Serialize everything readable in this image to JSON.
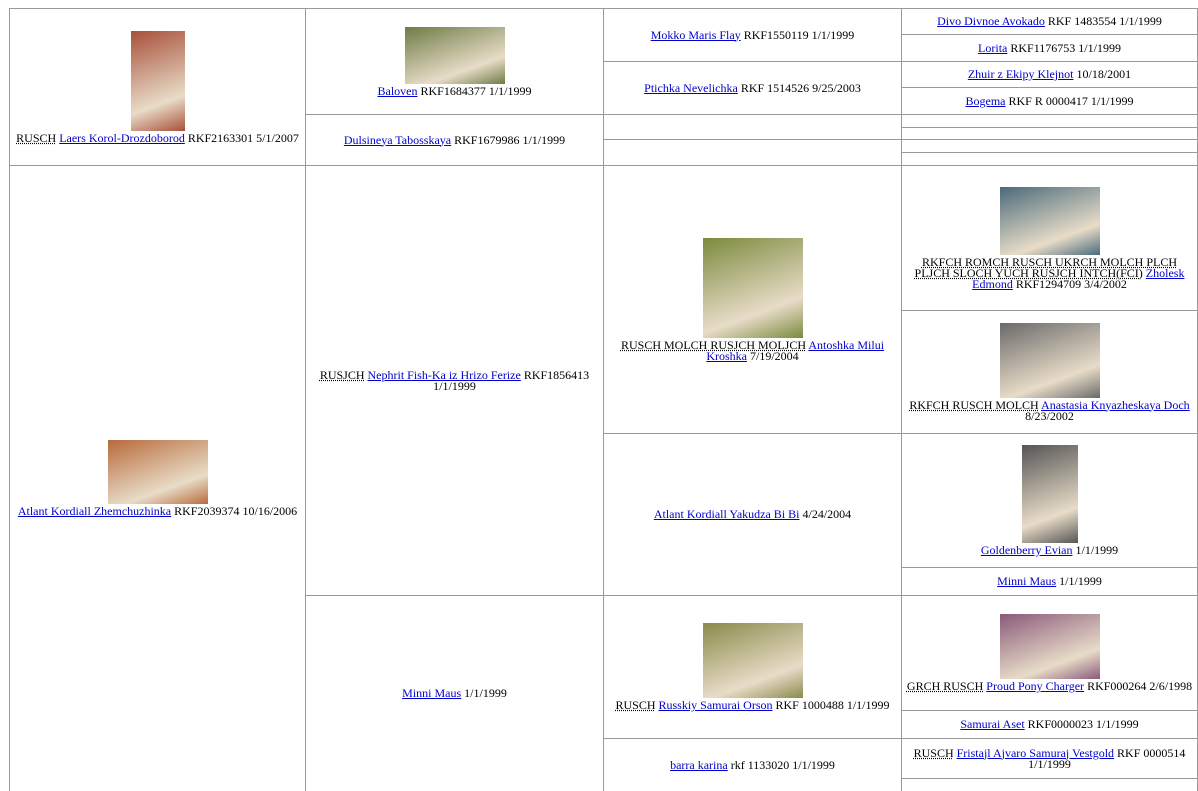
{
  "cells": [
    {
      "title": "RUSCH",
      "name": "Laers Korol-Drozdoborod",
      "info": "RKF2163301 5/1/2007"
    },
    {
      "name": "Baloven",
      "info": "RKF1684377 1/1/1999"
    },
    {
      "name": "Mokko Maris Flay",
      "info": "RKF1550119 1/1/1999"
    },
    {
      "name": "Divo Divnoe Avokado",
      "info": "RKF 1483554 1/1/1999"
    },
    {
      "name": "Lorita",
      "info": "RKF1176753 1/1/1999"
    },
    {
      "name": "Ptichka Nevelichka",
      "info": "RKF 1514526 9/25/2003"
    },
    {
      "name": "Zhuir z Ekipy Klejnot",
      "info": "10/18/2001"
    },
    {
      "name": "Bogema",
      "info": "RKF R 0000417 1/1/1999"
    },
    {
      "name": "Dulsineya Tabosskaya",
      "info": "RKF1679986 1/1/1999"
    },
    {
      "name": "Atlant Kordiall Zhemchuzhinka",
      "info": "RKF2039374 10/16/2006"
    },
    {
      "title": "RUSJCH",
      "name": "Nephrit Fish-Ka iz Hrizo Ferize",
      "info": "RKF1856413 1/1/1999"
    },
    {
      "title": "RUSCH MOLCH RUSJCH MOLJCH",
      "name": "Antoshka Milui Kroshka",
      "info": "7/19/2004"
    },
    {
      "title": "RKFCH ROMCH RUSCH UKRCH MOLCH PLCH PLJCH SLOCH YUCH RUSJCH INTCH(FCI)",
      "name": "Zholesk Edmond",
      "info": "RKF1294709 3/4/2002"
    },
    {
      "title": "RKFCH RUSCH MOLCH",
      "name": "Anastasia Knyazheskaya Doch",
      "info": "8/23/2002"
    },
    {
      "name": "Atlant Kordiall Yakudza Bi Bi",
      "info": "4/24/2004"
    },
    {
      "name": "Goldenberry Evian",
      "info": "1/1/1999"
    },
    {
      "name": "Minni Maus",
      "info": "1/1/1999"
    },
    {
      "name": "Minni Maus",
      "info": "1/1/1999"
    },
    {
      "title": "RUSCH",
      "name": "Russkiy Samurai Orson",
      "info": "RKF 1000488 1/1/1999"
    },
    {
      "title": "GRCH RUSCH",
      "name": "Proud Pony Charger",
      "info": "RKF000264 2/6/1998"
    },
    {
      "name": "Samurai Aset",
      "info": "RKF0000023 1/1/1999"
    },
    {
      "name": "barra karina",
      "info": "rkf 1133020 1/1/1999"
    },
    {
      "title": "RUSCH",
      "name": "Fristajl Ajvaro Samuraj Vestgold",
      "info": "RKF 0000514 1/1/1999"
    }
  ]
}
